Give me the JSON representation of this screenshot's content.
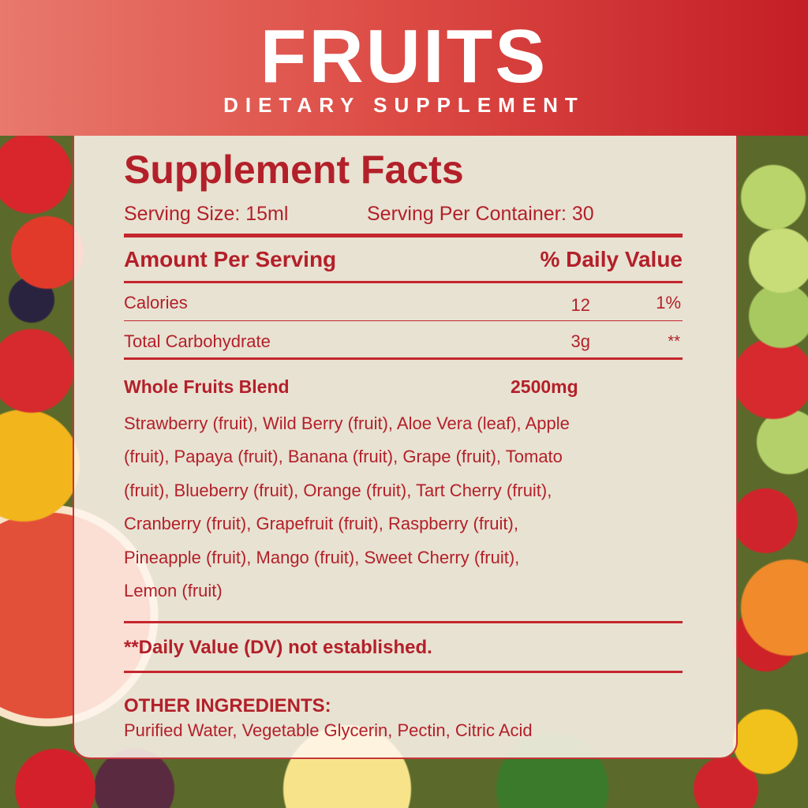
{
  "header": {
    "brand": "FRUITS",
    "subtitle": "DIETARY SUPPLEMENT"
  },
  "facts": {
    "title": "Supplement Facts",
    "serving_size": "Serving Size:  15ml",
    "servings_per_container": "Serving Per Container:  30",
    "amount_header": "Amount Per Serving",
    "dv_header": "% Daily Value",
    "rows": [
      {
        "name": "Calories",
        "amount": "12",
        "dv": "1%"
      },
      {
        "name": "Total Carbohydrate",
        "amount": "3g",
        "dv": "**"
      }
    ],
    "blend": {
      "name": "Whole Fruits Blend",
      "amount": "2500mg"
    },
    "blend_lines": [
      "Strawberry (fruit), Wild Berry (fruit), Aloe Vera (leaf), Apple",
      "(fruit), Papaya (fruit), Banana (fruit), Grape (fruit), Tomato",
      "(fruit), Blueberry (fruit), Orange (fruit), Tart Cherry (fruit),",
      "Cranberry (fruit), Grapefruit (fruit), Raspberry (fruit),",
      "Pineapple (fruit), Mango (fruit), Sweet Cherry (fruit),",
      "Lemon (fruit)"
    ],
    "dv_note": "**Daily Value (DV) not established.",
    "other_title": "OTHER INGREDIENTS:",
    "other_text": "Purified Water, Vegetable Glycerin, Pectin, Citric Acid"
  },
  "colors": {
    "text": "#b3202a",
    "header_left": "#e8796c",
    "header_right": "#c41e26"
  }
}
